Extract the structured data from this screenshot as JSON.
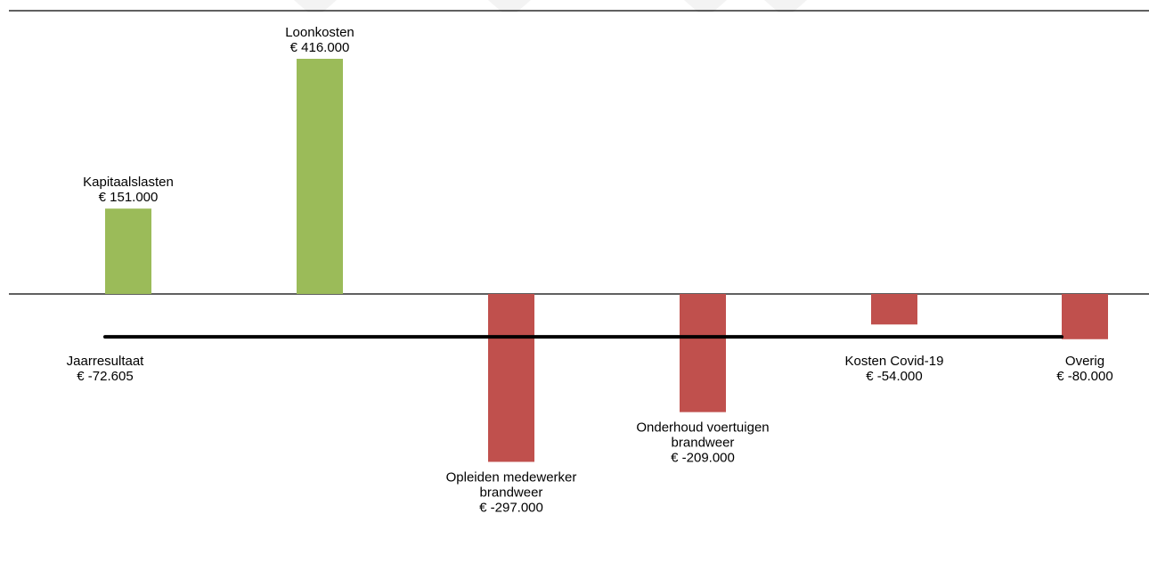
{
  "chart_data": {
    "type": "bar",
    "categories": [
      "Kapitaalslasten",
      "Loonkosten",
      "Opleiden medewerker brandweer",
      "Onderhoud voertuigen brandweer",
      "Kosten Covid-19",
      "Overig"
    ],
    "values": [
      151000,
      416000,
      -297000,
      -209000,
      -54000,
      -80000
    ],
    "labels": [
      [
        "Kapitaalslasten",
        "€ 151.000"
      ],
      [
        "Loonkosten",
        "€ 416.000"
      ],
      [
        "Opleiden medewerker",
        "brandweer",
        "€ -297.000"
      ],
      [
        "Onderhoud voertuigen",
        "brandweer",
        "€ -209.000"
      ],
      [
        "Kosten Covid-19",
        "€ -54.000"
      ],
      [
        "Overig",
        "€ -80.000"
      ]
    ],
    "result_line": {
      "label": [
        "Jaarresultaat",
        "€ -72.605"
      ],
      "value": -72605
    },
    "ylim": [
      -500000,
      500000
    ],
    "grid": false,
    "legend": "none",
    "colors": {
      "positive": "#9bbb59",
      "negative": "#c0504d",
      "axis": "#000000",
      "result_line": "#000000"
    }
  }
}
